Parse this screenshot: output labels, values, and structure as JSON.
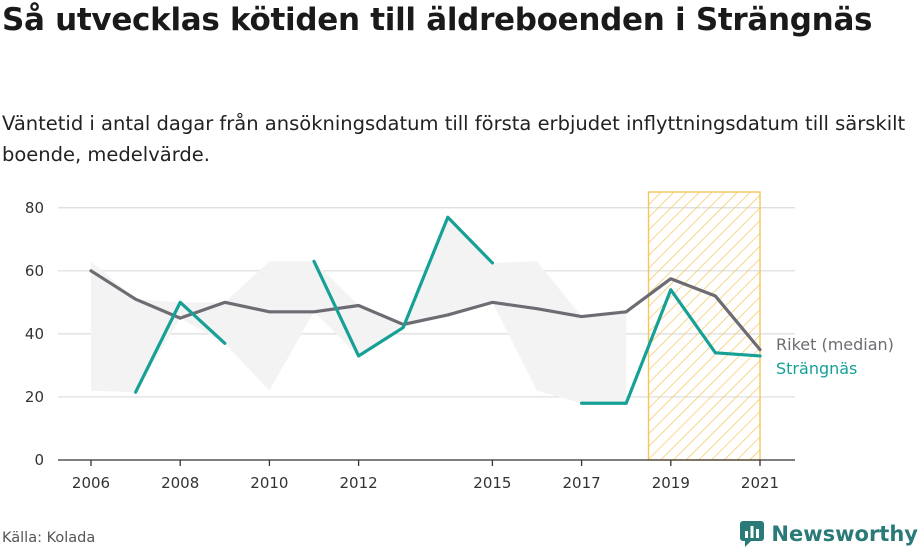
{
  "header": {
    "title": "Så utvecklas kötiden till äldreboenden i Strängnäs",
    "subtitle": "Väntetid i antal dagar från ansökningsdatum till första erbjudet inflyttningsdatum till särskilt boende, medelvärde."
  },
  "footer": {
    "source": "Källa: Kolada",
    "brand": "Newsworthy"
  },
  "colors": {
    "riket": "#6e6c73",
    "strangnas": "#16a096",
    "fill": "#f3f3f4",
    "highlight": "#f5c55a",
    "grid": "#dcdcdc",
    "brand": "#2a7a78"
  },
  "chart_data": {
    "type": "line",
    "title": "Så utvecklas kötiden till äldreboenden i Strängnäs",
    "subtitle": "Väntetid i antal dagar från ansökningsdatum till första erbjudet inflyttningsdatum till särskilt boende, medelvärde.",
    "x": [
      2006,
      2007,
      2008,
      2009,
      2010,
      2011,
      2012,
      2013,
      2014,
      2015,
      2016,
      2017,
      2018,
      2019,
      2020,
      2021
    ],
    "xticks": [
      2006,
      2008,
      2010,
      2012,
      2015,
      2017,
      2019,
      2021
    ],
    "xlim": [
      2006,
      2021
    ],
    "ylim": [
      0,
      85
    ],
    "yticks": [
      0,
      20,
      40,
      60,
      80
    ],
    "grid": true,
    "highlight_range": [
      2018.5,
      2021
    ],
    "series": [
      {
        "name": "Riket (median)",
        "color": "#6e6c73",
        "values": [
          60,
          51,
          45,
          50,
          47,
          47,
          49,
          43,
          46,
          50,
          48,
          45.5,
          47,
          57.5,
          52,
          35
        ]
      },
      {
        "name": "Strängnäs",
        "color": "#16a096",
        "values": [
          null,
          21.5,
          50,
          37,
          null,
          63,
          33,
          42,
          77,
          62.5,
          null,
          18,
          18,
          54,
          34,
          33
        ]
      }
    ]
  }
}
